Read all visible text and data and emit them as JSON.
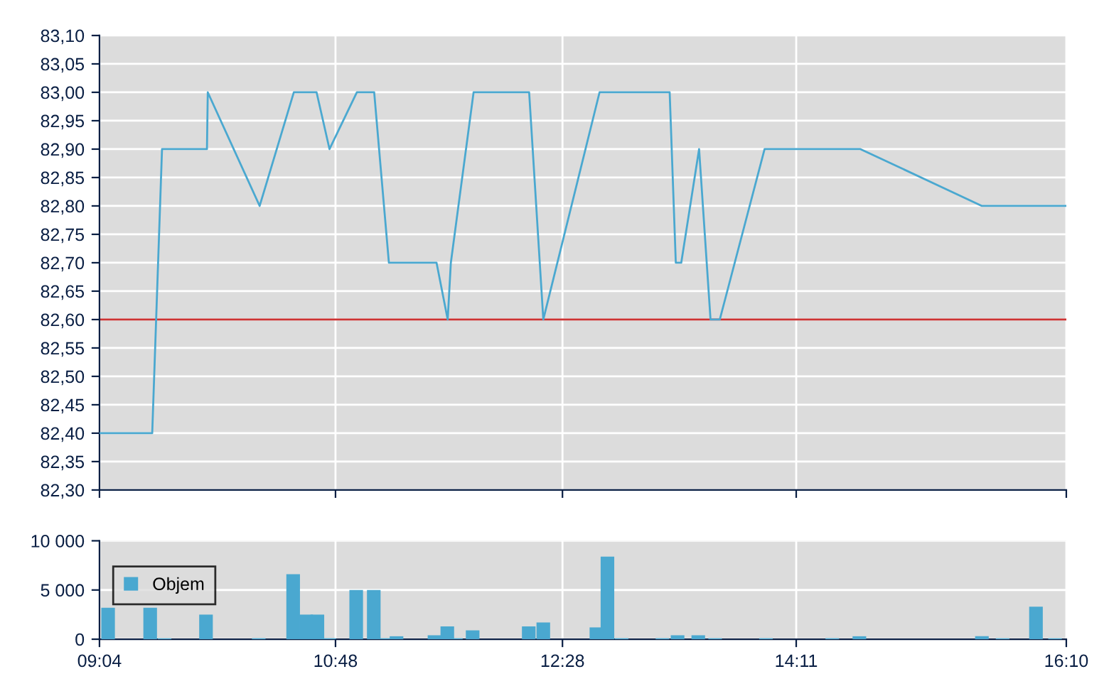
{
  "chart_data": [
    {
      "type": "line",
      "tick_labels": "y",
      "grid": true,
      "legend": false,
      "xlim": [
        9.0667,
        16.1667
      ],
      "xticks": [
        {
          "value": 9.0667,
          "label": null
        },
        {
          "value": 10.8,
          "label": null
        },
        {
          "value": 12.4667,
          "label": null
        },
        {
          "value": 14.1833,
          "label": null
        },
        {
          "value": 16.1667,
          "label": null
        }
      ],
      "ylim": [
        82.3,
        83.1
      ],
      "yticks": [
        {
          "value": 82.3,
          "label": "82,30"
        },
        {
          "value": 82.35,
          "label": "82,35"
        },
        {
          "value": 82.4,
          "label": "82,40"
        },
        {
          "value": 82.45,
          "label": "82,45"
        },
        {
          "value": 82.5,
          "label": "82,50"
        },
        {
          "value": 82.55,
          "label": "82,55"
        },
        {
          "value": 82.6,
          "label": "82,60"
        },
        {
          "value": 82.65,
          "label": "82,65"
        },
        {
          "value": 82.7,
          "label": "82,70"
        },
        {
          "value": 82.75,
          "label": "82,75"
        },
        {
          "value": 82.8,
          "label": "82,80"
        },
        {
          "value": 82.85,
          "label": "82,85"
        },
        {
          "value": 82.9,
          "label": "82,90"
        },
        {
          "value": 82.95,
          "label": "82,95"
        },
        {
          "value": 83.0,
          "label": "83,00"
        },
        {
          "value": 83.05,
          "label": "83,05"
        },
        {
          "value": 83.1,
          "label": "83,10"
        }
      ],
      "ref_lines": [
        {
          "axis": "y",
          "value": 82.6,
          "label": null,
          "color": "#cc3333"
        }
      ],
      "series": [
        {
          "color": "#4aa8d0",
          "x": [
            9.067,
            9.454,
            9.526,
            9.856,
            9.862,
            10.243,
            10.494,
            10.661,
            10.756,
            10.957,
            11.084,
            11.192,
            11.542,
            11.624,
            11.647,
            11.814,
            12.222,
            12.326,
            12.739,
            13.254,
            13.299,
            13.339,
            13.47,
            13.554,
            13.622,
            13.951,
            14.655,
            15.547,
            16.1667
          ],
          "values": [
            82.4,
            82.4,
            82.9,
            82.9,
            83.0,
            82.8,
            83.0,
            83.0,
            82.9,
            83.0,
            83.0,
            82.7,
            82.7,
            82.6,
            82.7,
            83.0,
            83.0,
            82.6,
            83.0,
            83.0,
            82.7,
            82.7,
            82.9,
            82.6,
            82.6,
            82.9,
            82.9,
            82.8,
            82.8
          ]
        }
      ]
    },
    {
      "type": "bar",
      "grid": true,
      "legend": "top left",
      "xlim": [
        9.0667,
        16.1667
      ],
      "xticks": [
        {
          "value": 9.0667,
          "label": "09:04"
        },
        {
          "value": 10.8,
          "label": "10:48"
        },
        {
          "value": 12.4667,
          "label": "12:28"
        },
        {
          "value": 14.1833,
          "label": "14:11"
        },
        {
          "value": 16.1667,
          "label": "16:10"
        }
      ],
      "ylim": [
        0,
        10000
      ],
      "yticks": [
        0,
        {
          "value": 5000,
          "label": "5 000"
        },
        {
          "value": 10000,
          "label": "10 000"
        }
      ],
      "series": [
        {
          "name": "Objem",
          "color": "#4aa8d0",
          "x": [
            9.13,
            9.439,
            9.545,
            9.849,
            10.236,
            10.489,
            10.585,
            10.667,
            10.753,
            10.952,
            11.081,
            11.165,
            11.248,
            11.527,
            11.621,
            11.684,
            11.807,
            12.219,
            12.326,
            12.716,
            12.797,
            12.901,
            13.201,
            13.312,
            13.464,
            13.588,
            13.961,
            14.448,
            14.647,
            15.547,
            15.699,
            15.944,
            16.084
          ],
          "values": [
            3200,
            3200,
            100,
            2500,
            100,
            6600,
            2500,
            2500,
            100,
            5000,
            5000,
            100,
            300,
            400,
            1300,
            100,
            900,
            1300,
            1700,
            1200,
            8400,
            100,
            100,
            400,
            400,
            100,
            100,
            100,
            300,
            300,
            100,
            3300,
            100
          ]
        }
      ]
    }
  ]
}
